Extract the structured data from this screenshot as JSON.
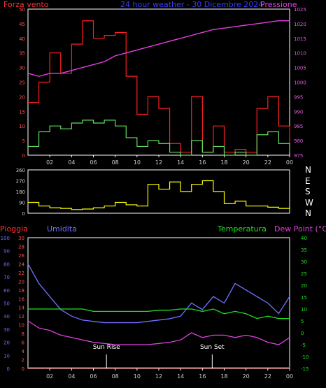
{
  "header": {
    "left_label": "Forza vento",
    "title": "24 hour weather - 30 Dicembre 2024",
    "right_label": "Pressione"
  },
  "lower_header": {
    "pioggia": "Pioggia",
    "umidita": "Umidita",
    "temperatura": "Temperatura",
    "dew_point": "Dew Point (°C)"
  },
  "markers": {
    "sunrise": "Sun Rise",
    "sunset": "Sun Set"
  },
  "colors": {
    "wind_gust": "#ff2020",
    "wind_avg": "#60e060",
    "pressure": "#e040e0",
    "direction": "#ffff00",
    "humidity": "#7070ff",
    "temperature": "#20e020",
    "dew_point": "#e040e0",
    "rain": "#ff3030",
    "axis": "#ffffff"
  },
  "chart_data": [
    {
      "type": "line",
      "name": "wind-pressure",
      "x_tick_labels": [
        "02",
        "04",
        "06",
        "08",
        "10",
        "12",
        "14",
        "16",
        "18",
        "20",
        "22",
        "00"
      ],
      "y_left_ticks": [
        "0",
        "5",
        "10",
        "15",
        "20",
        "25",
        "30",
        "35",
        "40",
        "45",
        "50"
      ],
      "y_right_ticks": [
        "975",
        "980",
        "985",
        "990",
        "995",
        "1000",
        "1005",
        "1010",
        "1015",
        "1020",
        "1025"
      ],
      "ylim_left": [
        0,
        50
      ],
      "ylim_right": [
        975,
        1025
      ],
      "x_hours": [
        0,
        1,
        2,
        3,
        4,
        5,
        6,
        7,
        8,
        9,
        10,
        11,
        12,
        13,
        14,
        15,
        16,
        17,
        18,
        19,
        20,
        21,
        22,
        23,
        24
      ],
      "series": [
        {
          "name": "Forza vento",
          "role": "gust",
          "values": [
            18,
            25,
            35,
            28,
            38,
            46,
            40,
            41,
            42,
            27,
            14,
            20,
            16,
            4,
            1,
            20,
            1,
            10,
            1,
            2,
            1,
            16,
            20,
            10,
            2
          ]
        },
        {
          "name": "",
          "role": "average",
          "values": [
            3,
            8,
            10,
            9,
            11,
            12,
            11,
            12,
            10,
            6,
            3,
            5,
            4,
            1,
            0,
            5,
            1,
            3,
            0,
            1,
            0,
            7,
            8,
            4,
            1
          ]
        },
        {
          "name": "Pressione",
          "role": "pressure",
          "values": [
            1003,
            1002,
            1003,
            1003,
            1004,
            1005,
            1006,
            1007,
            1009,
            1010,
            1011,
            1012,
            1013,
            1014,
            1015,
            1016,
            1017,
            1018,
            1018.5,
            1019,
            1019.5,
            1020,
            1020.5,
            1021,
            1021
          ]
        }
      ]
    },
    {
      "type": "line",
      "name": "wind-direction",
      "y_ticks": [
        "0",
        "90",
        "180",
        "270",
        "360"
      ],
      "direction_labels": [
        "N",
        "W",
        "S",
        "E",
        "N"
      ],
      "ylim": [
        0,
        360
      ],
      "x_hours": [
        0,
        1,
        2,
        3,
        4,
        5,
        6,
        7,
        8,
        9,
        10,
        11,
        12,
        13,
        14,
        15,
        16,
        17,
        18,
        19,
        20,
        21,
        22,
        23,
        24
      ],
      "series": [
        {
          "name": "",
          "values": [
            90,
            60,
            45,
            40,
            30,
            35,
            45,
            60,
            90,
            70,
            60,
            240,
            200,
            260,
            180,
            240,
            270,
            180,
            80,
            100,
            60,
            60,
            50,
            40,
            60
          ]
        }
      ]
    },
    {
      "type": "line",
      "name": "humidity-temperature",
      "y_humidity_ticks": [
        "0",
        "10",
        "20",
        "30",
        "40",
        "50",
        "60",
        "70",
        "80",
        "90",
        "100"
      ],
      "y_rain_ticks": [
        "0",
        "2",
        "4",
        "6",
        "8",
        "10",
        "12",
        "14",
        "16",
        "18",
        "20",
        "22",
        "24",
        "26",
        "28",
        "30"
      ],
      "y_temp_ticks": [
        "-15",
        "-10",
        "-5",
        "0",
        "5",
        "10",
        "15",
        "20",
        "25",
        "30",
        "35",
        "40"
      ],
      "ylim_humidity": [
        0,
        100
      ],
      "ylim_temp": [
        -15,
        40
      ],
      "x_hours": [
        0,
        1,
        2,
        3,
        4,
        5,
        6,
        7,
        8,
        9,
        10,
        11,
        12,
        13,
        14,
        15,
        16,
        17,
        18,
        19,
        20,
        21,
        22,
        23,
        24
      ],
      "series": [
        {
          "name": "Umidita",
          "values": [
            80,
            65,
            55,
            45,
            40,
            37,
            36,
            35,
            35,
            35,
            35,
            36,
            37,
            38,
            40,
            50,
            45,
            55,
            50,
            65,
            60,
            55,
            50,
            42,
            55
          ]
        },
        {
          "name": "Temperatura",
          "values": [
            10,
            10,
            10,
            10,
            10,
            10,
            9,
            9,
            9,
            9,
            9,
            9,
            9.5,
            9.5,
            10,
            10,
            9,
            10,
            8,
            9,
            8,
            6,
            7,
            6,
            6
          ]
        },
        {
          "name": "Dew Point (°C)",
          "values": [
            5,
            2,
            1,
            -1,
            -2,
            -3,
            -4,
            -4.5,
            -5,
            -5,
            -5,
            -5,
            -4.5,
            -4,
            -3,
            0,
            -2,
            -1,
            -1,
            -2,
            -1,
            -2,
            -4,
            -5,
            -2
          ]
        },
        {
          "name": "Pioggia",
          "values": [
            0,
            0,
            0,
            0,
            0,
            0,
            0,
            0,
            0,
            0,
            0,
            0,
            0,
            0,
            0,
            0,
            0,
            0,
            0,
            0,
            0,
            0,
            0,
            0,
            0
          ]
        }
      ]
    }
  ]
}
